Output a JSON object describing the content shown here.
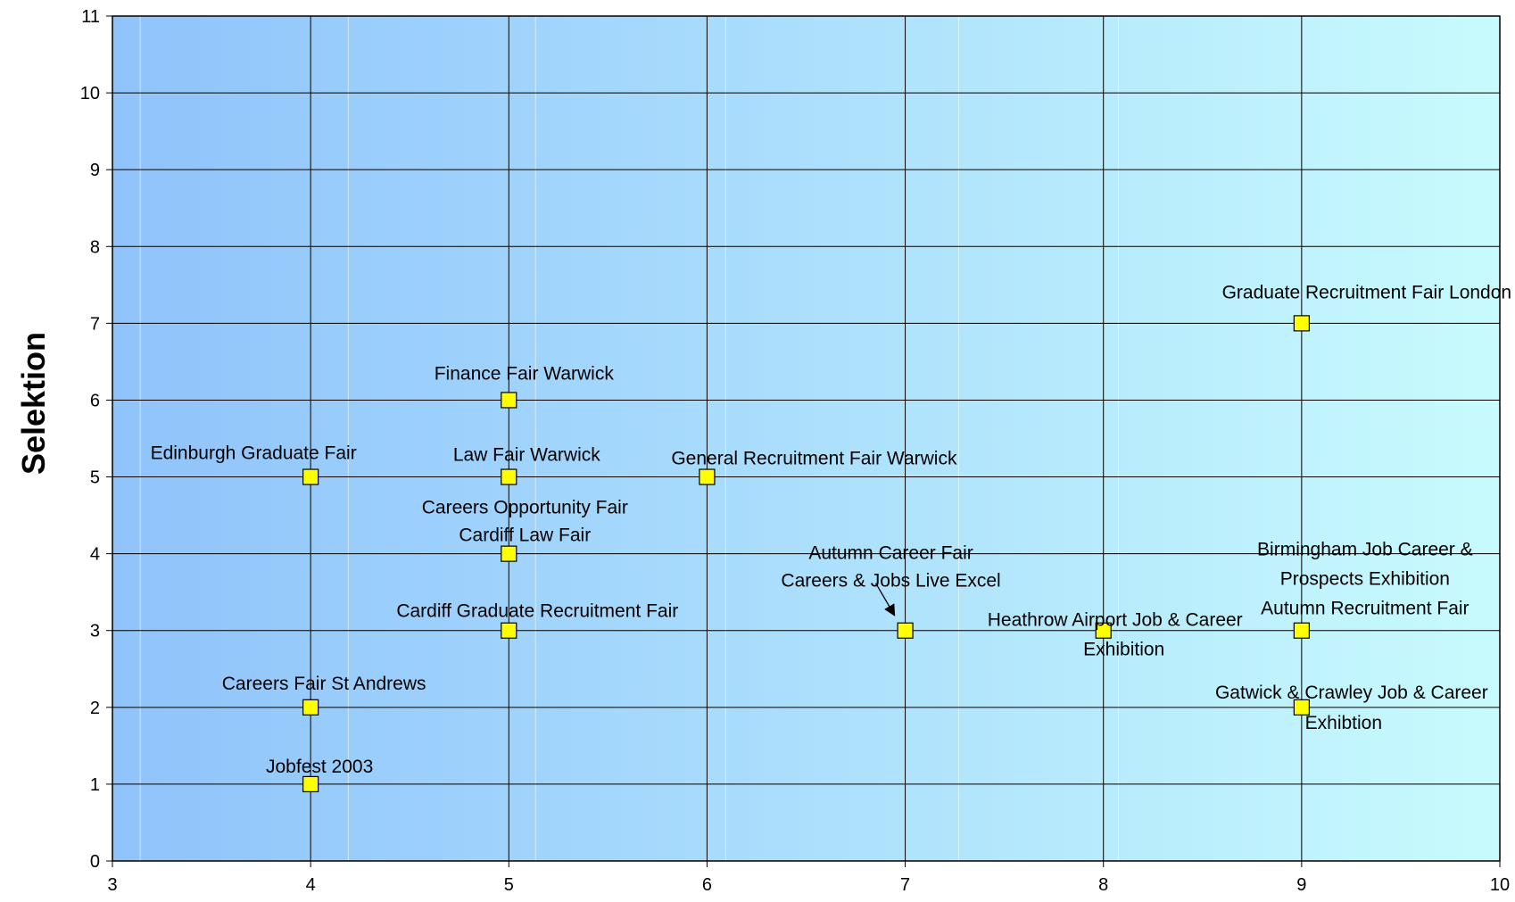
{
  "chart_data": {
    "type": "scatter",
    "title": "",
    "xlabel": "",
    "ylabel": "Selektion",
    "xlim": [
      3,
      10
    ],
    "ylim": [
      0,
      11
    ],
    "x_ticks": [
      "3",
      "4",
      "5",
      "6",
      "7",
      "8",
      "9",
      "10"
    ],
    "y_ticks": [
      "0",
      "1",
      "2",
      "3",
      "4",
      "5",
      "6",
      "7",
      "8",
      "9",
      "10",
      "11"
    ],
    "grid": true,
    "legend": "none",
    "marker": "square",
    "colors": {
      "marker_fill": "#ffff00",
      "marker_stroke": "#000000",
      "plot_bg_left": "#8fc3fb",
      "plot_bg_right": "#c8fbfd",
      "grid": "#000000"
    },
    "points": [
      {
        "x": 4,
        "y": 1,
        "lines": [
          "Jobfest 2003"
        ]
      },
      {
        "x": 4,
        "y": 2,
        "lines": [
          "Careers Fair St Andrews"
        ]
      },
      {
        "x": 4,
        "y": 5,
        "lines": [
          "Edinburgh Graduate Fair"
        ]
      },
      {
        "x": 5,
        "y": 3,
        "lines": [
          "Cardiff Graduate Recruitment Fair"
        ]
      },
      {
        "x": 5,
        "y": 4,
        "lines": [
          "Careers Opportunity Fair",
          "Cardiff Law Fair"
        ]
      },
      {
        "x": 5,
        "y": 5,
        "lines": [
          "Law Fair Warwick"
        ]
      },
      {
        "x": 5,
        "y": 6,
        "lines": [
          "Finance Fair Warwick"
        ]
      },
      {
        "x": 6,
        "y": 5,
        "lines": [
          "General Recruitment Fair Warwick"
        ]
      },
      {
        "x": 7,
        "y": 3,
        "lines": [
          "Autumn Career Fair",
          "Careers & Jobs Live Excel"
        ]
      },
      {
        "x": 8,
        "y": 3,
        "lines": [
          "Heathrow Airport Job & Career",
          "Exhibition"
        ]
      },
      {
        "x": 9,
        "y": 2,
        "lines": [
          "Gatwick & Crawley Job & Career",
          "Exhibtion"
        ]
      },
      {
        "x": 9,
        "y": 3,
        "lines": [
          "Birmingham Job Career &",
          "Prospects Exhibition",
          "Autumn Recruitment Fair"
        ]
      },
      {
        "x": 9,
        "y": 7,
        "lines": [
          "Graduate Recruitment Fair London"
        ]
      }
    ]
  }
}
